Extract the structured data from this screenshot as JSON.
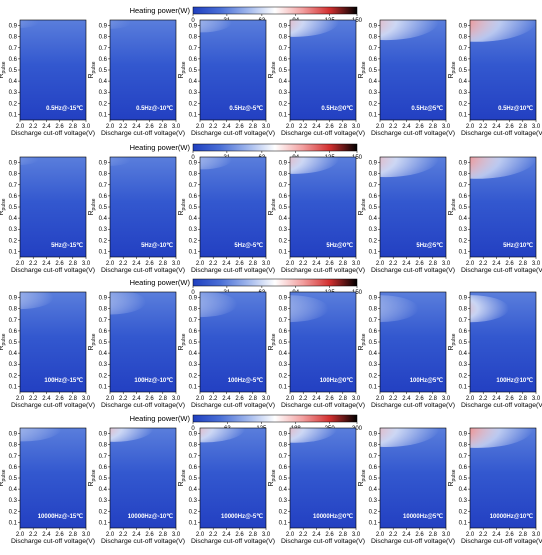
{
  "figure": {
    "colorbar_title": "Heating power(W)"
  },
  "chart_data": {
    "type": "heatmap",
    "xlabel": "Discharge cut-off voltage(V)",
    "ylabel_main": "R",
    "ylabel_sub": "pulse",
    "x_ticks": [
      "2.0",
      "2.2",
      "2.4",
      "2.6",
      "2.8",
      "3.0"
    ],
    "y_ticks": [
      "0.1",
      "0.2",
      "0.3",
      "0.4",
      "0.5",
      "0.6",
      "0.7",
      "0.8",
      "0.9"
    ],
    "xlim": [
      2.0,
      3.0
    ],
    "ylim": [
      0.05,
      0.95
    ],
    "colormap": [
      "#1f3fbf",
      "#4a6fd6",
      "#9fb6ec",
      "#ffffff",
      "#f2a0a0",
      "#d23030",
      "#000000"
    ],
    "rows": [
      {
        "colorbar_ticks": [
          "0",
          "31",
          "63",
          "94",
          "125",
          "150"
        ],
        "cmax": 150,
        "panels": [
          {
            "label": "0.5Hz@-15℃",
            "hot_x_frac": 0.0,
            "hot_y": 0.93,
            "peak_power": 8
          },
          {
            "label": "0.5Hz@-10℃",
            "hot_x_frac": 0.0,
            "hot_y": 0.93,
            "peak_power": 18
          },
          {
            "label": "0.5Hz@-5℃",
            "hot_x_frac": 0.15,
            "hot_y": 0.93,
            "peak_power": 55
          },
          {
            "label": "0.5Hz@0℃",
            "hot_x_frac": 0.35,
            "hot_y": 0.94,
            "peak_power": 115
          },
          {
            "label": "0.5Hz@5℃",
            "hot_x_frac": 0.45,
            "hot_y": 0.94,
            "peak_power": 150
          },
          {
            "label": "0.5Hz@10℃",
            "hot_x_frac": 0.5,
            "hot_y": 0.95,
            "peak_power": 180
          }
        ]
      },
      {
        "colorbar_ticks": [
          "0",
          "31",
          "63",
          "94",
          "125",
          "150"
        ],
        "cmax": 150,
        "panels": [
          {
            "label": "5Hz@-15℃",
            "hot_x_frac": 0.0,
            "hot_y": 0.93,
            "peak_power": 8
          },
          {
            "label": "5Hz@-10℃",
            "hot_x_frac": 0.0,
            "hot_y": 0.93,
            "peak_power": 18
          },
          {
            "label": "5Hz@-5℃",
            "hot_x_frac": 0.15,
            "hot_y": 0.93,
            "peak_power": 55
          },
          {
            "label": "5Hz@0℃",
            "hot_x_frac": 0.35,
            "hot_y": 0.94,
            "peak_power": 115
          },
          {
            "label": "5Hz@5℃",
            "hot_x_frac": 0.45,
            "hot_y": 0.94,
            "peak_power": 150
          },
          {
            "label": "5Hz@10℃",
            "hot_x_frac": 0.5,
            "hot_y": 0.95,
            "peak_power": 180
          }
        ]
      },
      {
        "colorbar_ticks": [
          "0",
          "31",
          "63",
          "94",
          "125",
          "150"
        ],
        "cmax": 150,
        "panels": [
          {
            "label": "100Hz@-15℃",
            "hot_x_frac": 0.0,
            "hot_y": 0.9,
            "peak_power": 70
          },
          {
            "label": "100Hz@-10℃",
            "hot_x_frac": 0.0,
            "hot_y": 0.86,
            "peak_power": 80
          },
          {
            "label": "100Hz@-5℃",
            "hot_x_frac": 0.0,
            "hot_y": 0.84,
            "peak_power": 85
          },
          {
            "label": "100Hz@0℃",
            "hot_x_frac": 0.0,
            "hot_y": 0.8,
            "peak_power": 90
          },
          {
            "label": "100Hz@5℃",
            "hot_x_frac": 0.0,
            "hot_y": 0.8,
            "peak_power": 90
          },
          {
            "label": "100Hz@10℃",
            "hot_x_frac": 0.0,
            "hot_y": 0.8,
            "peak_power": 92
          }
        ]
      },
      {
        "colorbar_ticks": [
          "0",
          "63",
          "125",
          "188",
          "250",
          "300"
        ],
        "cmax": 300,
        "panels": [
          {
            "label": "10000Hz@-15℃",
            "hot_x_frac": 0.25,
            "hot_y": 0.95,
            "peak_power": 180
          },
          {
            "label": "10000Hz@-10℃",
            "hot_x_frac": 0.3,
            "hot_y": 0.95,
            "peak_power": 190
          },
          {
            "label": "10000Hz@-5℃",
            "hot_x_frac": 0.35,
            "hot_y": 0.95,
            "peak_power": 200
          },
          {
            "label": "10000Hz@0℃",
            "hot_x_frac": 0.4,
            "hot_y": 0.95,
            "peak_power": 210
          },
          {
            "label": "10000Hz@5℃",
            "hot_x_frac": 0.5,
            "hot_y": 0.95,
            "peak_power": 300
          },
          {
            "label": "10000Hz@10℃",
            "hot_x_frac": 0.6,
            "hot_y": 0.95,
            "peak_power": 320
          }
        ]
      }
    ]
  }
}
